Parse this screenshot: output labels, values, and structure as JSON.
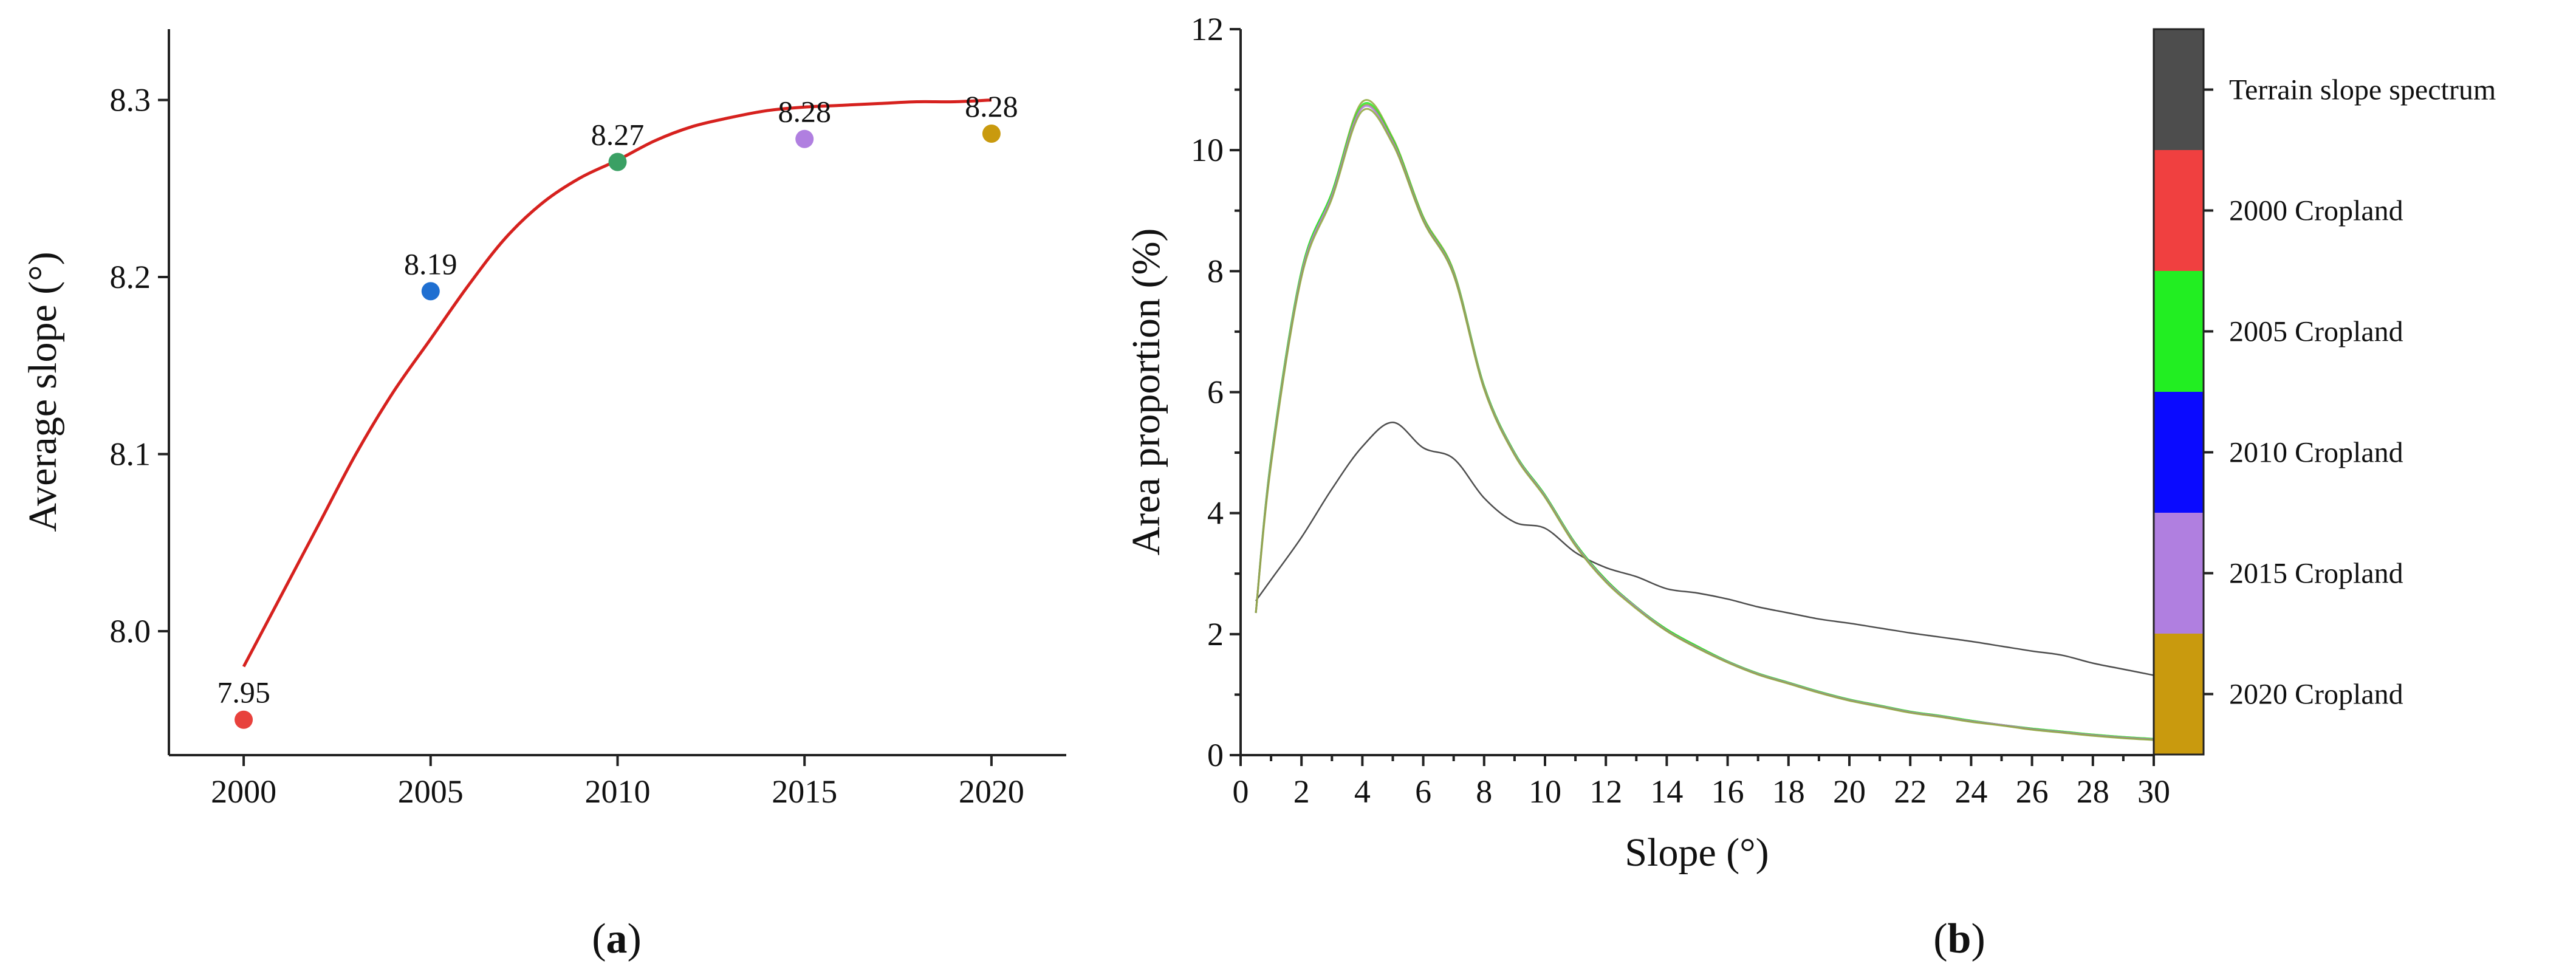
{
  "chart_data": [
    {
      "id": "a",
      "type": "scatter",
      "panel_label": {
        "open": "(",
        "letter": "a",
        "close": ")"
      },
      "xlabel": "",
      "ylabel": "Average slope (°)",
      "xlim": [
        1998,
        2022
      ],
      "ylim": [
        7.93,
        8.34
      ],
      "xticks": [
        2000,
        2005,
        2010,
        2015,
        2020
      ],
      "yticks": [
        8.0,
        8.1,
        8.2,
        8.3
      ],
      "ytick_labels": [
        "8.0",
        "8.1",
        "8.2",
        "8.3"
      ],
      "points": [
        {
          "x": 2000,
          "y": 7.95,
          "label": "7.95",
          "color": "#e8413c"
        },
        {
          "x": 2005,
          "y": 8.192,
          "label": "8.19",
          "color": "#1f6fd1"
        },
        {
          "x": 2010,
          "y": 8.265,
          "label": "8.27",
          "color": "#3aa064"
        },
        {
          "x": 2015,
          "y": 8.278,
          "label": "8.28",
          "color": "#b07fe0"
        },
        {
          "x": 2020,
          "y": 8.281,
          "label": "8.28",
          "color": "#c99a0e"
        }
      ],
      "fit": {
        "color": "#d6211e",
        "x": [
          2000,
          2001,
          2002,
          2003,
          2004,
          2005,
          2006,
          2007,
          2008,
          2009,
          2010,
          2011,
          2012,
          2013,
          2014,
          2015,
          2016,
          2017,
          2018,
          2019,
          2020
        ],
        "y": [
          7.98,
          8.02,
          8.06,
          8.1,
          8.135,
          8.165,
          8.195,
          8.222,
          8.242,
          8.256,
          8.266,
          8.277,
          8.285,
          8.29,
          8.294,
          8.296,
          8.297,
          8.298,
          8.299,
          8.299,
          8.3
        ]
      }
    },
    {
      "id": "b",
      "type": "line",
      "panel_label": {
        "open": "(",
        "letter": "b",
        "close": ")"
      },
      "xlabel": "Slope (°)",
      "ylabel": "Area proportion (%)",
      "xlim": [
        0,
        30
      ],
      "ylim": [
        0,
        12
      ],
      "xticks": [
        0,
        2,
        4,
        6,
        8,
        10,
        12,
        14,
        16,
        18,
        20,
        22,
        24,
        26,
        28,
        30
      ],
      "yticks": [
        0,
        2,
        4,
        6,
        8,
        10,
        12
      ],
      "x": [
        0.5,
        1,
        2,
        3,
        4,
        5,
        6,
        7,
        8,
        9,
        10,
        11,
        12,
        13,
        14,
        15,
        16,
        17,
        18,
        19,
        20,
        21,
        22,
        23,
        24,
        25,
        26,
        27,
        28,
        29,
        30
      ],
      "series": [
        {
          "name": "Terrain slope spectrum",
          "color": "#4d4d4d",
          "values": [
            2.55,
            2.9,
            3.6,
            4.4,
            5.1,
            5.5,
            5.08,
            4.9,
            4.25,
            3.85,
            3.75,
            3.35,
            3.1,
            2.95,
            2.75,
            2.68,
            2.58,
            2.45,
            2.35,
            2.25,
            2.18,
            2.1,
            2.02,
            1.95,
            1.88,
            1.8,
            1.72,
            1.65,
            1.52,
            1.42,
            1.32
          ]
        },
        {
          "name": "2000 Cropland",
          "color": "#f04040",
          "values": [
            2.35,
            4.9,
            8.0,
            9.3,
            10.8,
            10.2,
            8.9,
            8.0,
            6.1,
            5.0,
            4.3,
            3.5,
            2.9,
            2.45,
            2.08,
            1.8,
            1.55,
            1.35,
            1.2,
            1.05,
            0.92,
            0.82,
            0.72,
            0.65,
            0.57,
            0.5,
            0.44,
            0.39,
            0.34,
            0.3,
            0.27
          ]
        },
        {
          "name": "2005 Cropland",
          "color": "#22ee22",
          "values": [
            2.35,
            4.9,
            8.0,
            9.3,
            10.75,
            10.18,
            8.88,
            7.98,
            6.1,
            5.0,
            4.3,
            3.5,
            2.9,
            2.45,
            2.08,
            1.8,
            1.55,
            1.35,
            1.2,
            1.05,
            0.92,
            0.82,
            0.72,
            0.65,
            0.57,
            0.5,
            0.44,
            0.39,
            0.34,
            0.3,
            0.27
          ]
        },
        {
          "name": "2010 Cropland",
          "color": "#1515f0",
          "values": [
            2.35,
            4.85,
            7.95,
            9.25,
            10.72,
            10.15,
            8.86,
            7.96,
            6.08,
            4.98,
            4.28,
            3.48,
            2.88,
            2.44,
            2.06,
            1.78,
            1.54,
            1.34,
            1.19,
            1.04,
            0.91,
            0.81,
            0.71,
            0.64,
            0.56,
            0.5,
            0.43,
            0.38,
            0.33,
            0.29,
            0.26
          ]
        },
        {
          "name": "2015 Cropland",
          "color": "#b07fe0",
          "values": [
            2.35,
            4.85,
            7.95,
            9.25,
            10.7,
            10.13,
            8.85,
            7.95,
            6.07,
            4.98,
            4.28,
            3.48,
            2.88,
            2.44,
            2.06,
            1.78,
            1.54,
            1.34,
            1.19,
            1.04,
            0.91,
            0.81,
            0.71,
            0.64,
            0.56,
            0.5,
            0.43,
            0.38,
            0.33,
            0.29,
            0.26
          ]
        },
        {
          "name": "2020 Cropland",
          "color": "#c99a0e",
          "values": [
            2.35,
            4.8,
            7.9,
            9.2,
            10.65,
            10.1,
            8.83,
            7.93,
            6.05,
            4.96,
            4.26,
            3.46,
            2.86,
            2.42,
            2.05,
            1.77,
            1.53,
            1.33,
            1.18,
            1.03,
            0.9,
            0.8,
            0.7,
            0.63,
            0.55,
            0.49,
            0.42,
            0.37,
            0.32,
            0.28,
            0.25
          ]
        }
      ],
      "curve_overlay_color": "#8fa83a",
      "legend": {
        "placement": "right",
        "items": [
          {
            "label": "Terrain slope spectrum",
            "color": "#4d4d4d"
          },
          {
            "label": "2000 Cropland",
            "color": "#f04040"
          },
          {
            "label": "2005 Cropland",
            "color": "#22ee22"
          },
          {
            "label": "2010 Cropland",
            "color": "#0a0aff"
          },
          {
            "label": "2015 Cropland",
            "color": "#b07fe0"
          },
          {
            "label": "2020 Cropland",
            "color": "#c99a0e"
          }
        ]
      }
    }
  ]
}
